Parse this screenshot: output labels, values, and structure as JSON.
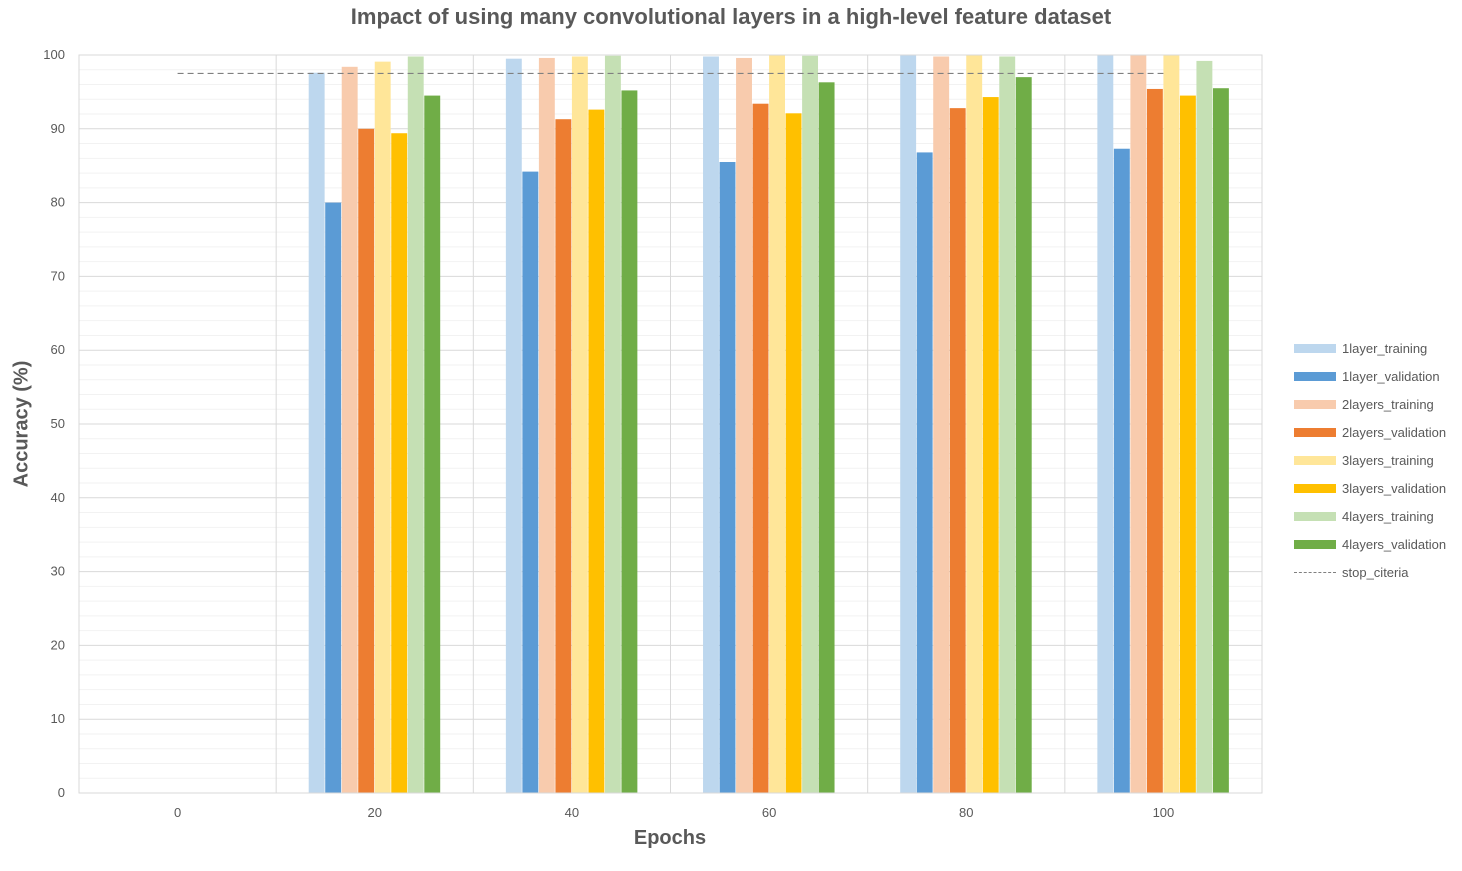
{
  "chart_data": {
    "type": "bar",
    "title": "Impact of using many convolutional layers in a high-level feature dataset",
    "xlabel": "Epochs",
    "ylabel": "Accuracy (%)",
    "ylim": [
      0,
      100
    ],
    "yticks": [
      "0",
      "10",
      "20",
      "30",
      "40",
      "50",
      "60",
      "70",
      "80",
      "90",
      "100"
    ],
    "categories": [
      "0",
      "20",
      "40",
      "60",
      "80",
      "100"
    ],
    "series": [
      {
        "name": "1layer_training",
        "color": "#BDD7EE",
        "values": [
          null,
          97.6,
          99.5,
          99.8,
          100,
          100
        ]
      },
      {
        "name": "1layer_validation",
        "color": "#5B9BD5",
        "values": [
          null,
          80.0,
          84.2,
          85.5,
          86.8,
          87.3
        ]
      },
      {
        "name": "2layers_training",
        "color": "#F8CBAD",
        "values": [
          null,
          98.4,
          99.6,
          99.6,
          99.8,
          100
        ]
      },
      {
        "name": "2layers_validation",
        "color": "#ED7D31",
        "values": [
          null,
          90.0,
          91.3,
          93.4,
          92.8,
          95.4
        ]
      },
      {
        "name": "3layers_training",
        "color": "#FFE699",
        "values": [
          null,
          99.1,
          99.8,
          100,
          100,
          100
        ]
      },
      {
        "name": "3layers_validation",
        "color": "#FFC000",
        "values": [
          null,
          89.4,
          92.6,
          92.1,
          94.3,
          94.5
        ]
      },
      {
        "name": "4layers_training",
        "color": "#C5E0B4",
        "values": [
          null,
          99.8,
          99.9,
          99.9,
          99.8,
          99.2
        ]
      },
      {
        "name": "4layers_validation",
        "color": "#70AD47",
        "values": [
          null,
          94.5,
          95.2,
          96.3,
          97.0,
          95.5
        ]
      }
    ],
    "reference_line": {
      "name": "stop_citeria",
      "value": 97.5,
      "style": "dashed",
      "color": "#808080"
    },
    "grid": true,
    "legend_position": "right"
  }
}
